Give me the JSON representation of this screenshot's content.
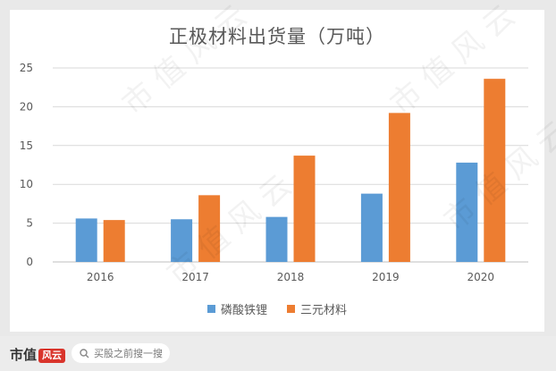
{
  "chart_data": {
    "type": "bar",
    "title": "正极材料出货量（万吨）",
    "categories": [
      "2016",
      "2017",
      "2018",
      "2019",
      "2020"
    ],
    "series": [
      {
        "name": "磷酸铁锂",
        "color": "#5b9bd5",
        "values": [
          5.6,
          5.5,
          5.8,
          8.8,
          12.8
        ]
      },
      {
        "name": "三元材料",
        "color": "#ed7d31",
        "values": [
          5.4,
          8.6,
          13.7,
          19.2,
          23.6
        ]
      }
    ],
    "ylim": [
      0,
      25
    ],
    "yticks": [
      "0",
      "5",
      "10",
      "15",
      "20",
      "25"
    ],
    "grid": true,
    "legend_position": "bottom"
  },
  "footer": {
    "brand": "市值",
    "brand_logo": "风云",
    "search_placeholder": "买股之前搜一搜",
    "search_icon": "search-icon"
  },
  "watermark": "市值风云"
}
